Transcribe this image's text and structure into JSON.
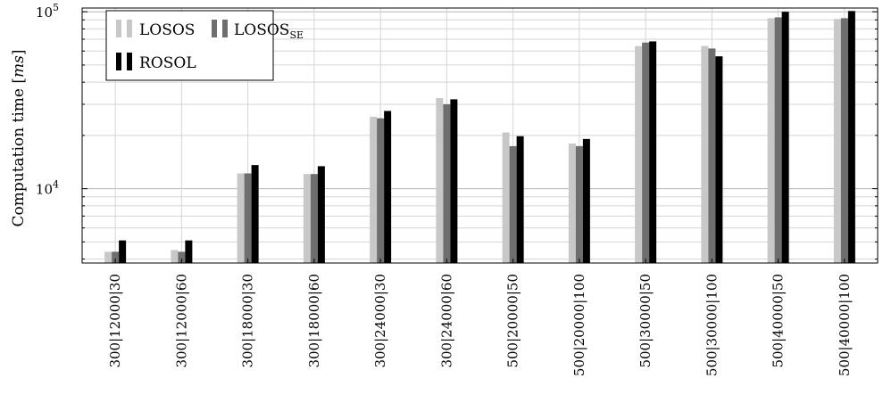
{
  "chart_data": {
    "type": "bar",
    "title": "",
    "ylabel": "Computation time",
    "ylabel_unit": "ms",
    "xlabel": "",
    "yscale": "log",
    "ylim": [
      3800,
      105000
    ],
    "y_tick_labels": [
      {
        "value": 10000,
        "base": "10",
        "exp": "4"
      },
      {
        "value": 100000,
        "base": "10",
        "exp": "5"
      }
    ],
    "grid": true,
    "legend_position": "top-left",
    "categories": [
      "300|12000|30",
      "300|12000|60",
      "300|18000|30",
      "300|18000|60",
      "300|24000|30",
      "300|24000|60",
      "500|20000|50",
      "500|20000|100",
      "500|30000|50",
      "500|30000|100",
      "500|40000|50",
      "500|40000|100"
    ],
    "series": [
      {
        "name": "LOSOS",
        "name_sub": "",
        "color": "#c8c8c8",
        "values": [
          4400,
          4500,
          12200,
          12100,
          25500,
          32500,
          20800,
          18000,
          64000,
          64000,
          92000,
          91000
        ]
      },
      {
        "name": "LOSOS",
        "name_sub": "SE",
        "color": "#6e6e6e",
        "values": [
          4400,
          4400,
          12200,
          12100,
          25000,
          30000,
          17400,
          17400,
          67000,
          62000,
          93000,
          92000
        ]
      },
      {
        "name": "ROSOL",
        "name_sub": "",
        "color": "#000000",
        "values": [
          5100,
          5100,
          13600,
          13400,
          27500,
          32000,
          19800,
          19100,
          68000,
          56000,
          100000,
          101000
        ]
      }
    ]
  }
}
